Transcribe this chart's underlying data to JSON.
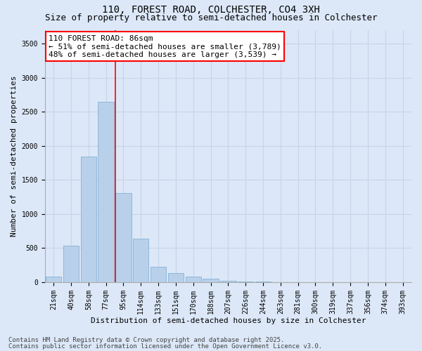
{
  "title_line1": "110, FOREST ROAD, COLCHESTER, CO4 3XH",
  "title_line2": "Size of property relative to semi-detached houses in Colchester",
  "xlabel": "Distribution of semi-detached houses by size in Colchester",
  "ylabel": "Number of semi-detached properties",
  "categories": [
    "21sqm",
    "40sqm",
    "58sqm",
    "77sqm",
    "95sqm",
    "114sqm",
    "133sqm",
    "151sqm",
    "170sqm",
    "188sqm",
    "207sqm",
    "226sqm",
    "244sqm",
    "263sqm",
    "281sqm",
    "300sqm",
    "319sqm",
    "337sqm",
    "356sqm",
    "374sqm",
    "393sqm"
  ],
  "values": [
    80,
    530,
    1840,
    2650,
    1310,
    640,
    230,
    130,
    80,
    50,
    20,
    10,
    5,
    2,
    1,
    0,
    0,
    0,
    0,
    0,
    0
  ],
  "bar_color": "#b8d0ea",
  "bar_edge_color": "#7aaad0",
  "vline_x_index": 3.52,
  "vline_color": "red",
  "annotation_box_text": "110 FOREST ROAD: 86sqm\n← 51% of semi-detached houses are smaller (3,789)\n48% of semi-detached houses are larger (3,539) →",
  "annotation_box_facecolor": "white",
  "annotation_box_edgecolor": "red",
  "ylim": [
    0,
    3700
  ],
  "yticks": [
    0,
    500,
    1000,
    1500,
    2000,
    2500,
    3000,
    3500
  ],
  "grid_color": "#c8d4e8",
  "background_color": "#dce8f8",
  "plot_bg_color": "#dce8f8",
  "footer_line1": "Contains HM Land Registry data © Crown copyright and database right 2025.",
  "footer_line2": "Contains public sector information licensed under the Open Government Licence v3.0.",
  "title_fontsize": 10,
  "subtitle_fontsize": 9,
  "annotation_fontsize": 8,
  "footer_fontsize": 6.5,
  "axis_label_fontsize": 8,
  "tick_fontsize": 7
}
